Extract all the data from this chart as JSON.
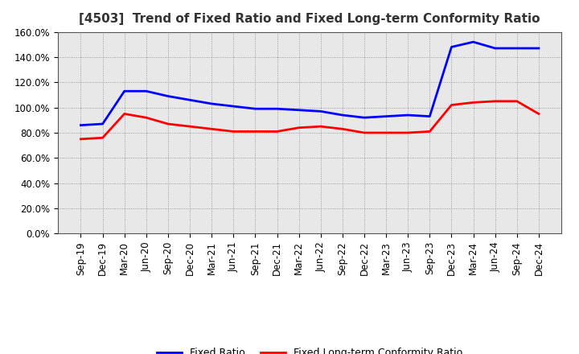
{
  "title": "[4503]  Trend of Fixed Ratio and Fixed Long-term Conformity Ratio",
  "x_labels": [
    "Sep-19",
    "Dec-19",
    "Mar-20",
    "Jun-20",
    "Sep-20",
    "Dec-20",
    "Mar-21",
    "Jun-21",
    "Sep-21",
    "Dec-21",
    "Mar-22",
    "Jun-22",
    "Sep-22",
    "Dec-22",
    "Mar-23",
    "Jun-23",
    "Sep-23",
    "Dec-23",
    "Mar-24",
    "Jun-24",
    "Sep-24",
    "Dec-24"
  ],
  "fixed_ratio": [
    86,
    87,
    113,
    113,
    109,
    106,
    103,
    101,
    99,
    99,
    98,
    97,
    94,
    92,
    93,
    94,
    93,
    148,
    152,
    147,
    147,
    147
  ],
  "fixed_lt_ratio": [
    75,
    76,
    95,
    92,
    87,
    85,
    83,
    81,
    81,
    81,
    84,
    85,
    83,
    80,
    80,
    80,
    81,
    102,
    104,
    105,
    105,
    95
  ],
  "ylim": [
    0,
    160
  ],
  "yticks": [
    0,
    20,
    40,
    60,
    80,
    100,
    120,
    140,
    160
  ],
  "fixed_ratio_color": "#0000FF",
  "fixed_lt_ratio_color": "#FF0000",
  "line_width": 2.0,
  "grid_color": "#888888",
  "background_color": "#FFFFFF",
  "plot_bg_color": "#E8E8E8",
  "legend_fixed": "Fixed Ratio",
  "legend_fixed_lt": "Fixed Long-term Conformity Ratio",
  "title_fontsize": 11,
  "tick_fontsize": 8.5
}
